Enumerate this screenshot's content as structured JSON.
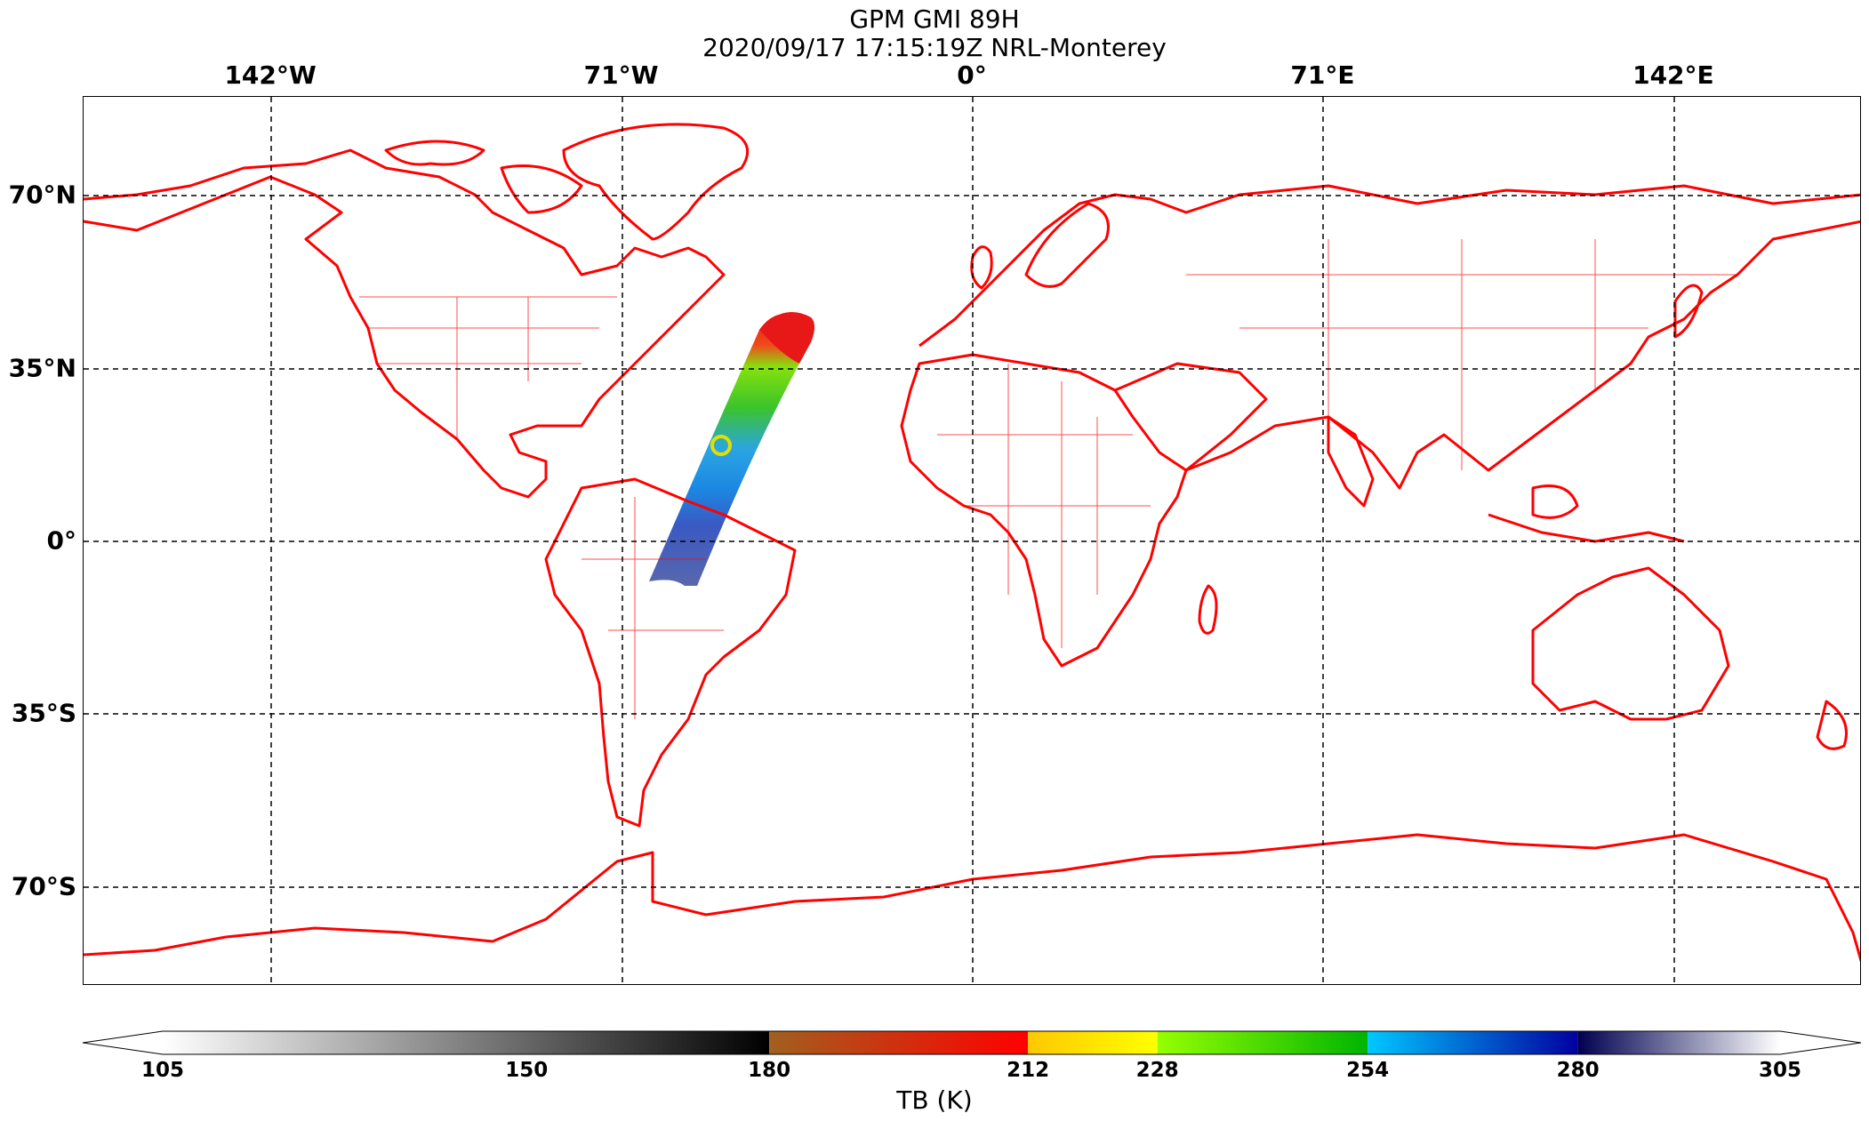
{
  "title": "GPM GMI 89H",
  "subtitle": "2020/09/17 17:15:19Z NRL-Monterey",
  "lon_labels": [
    "142°W",
    "71°W",
    "0°",
    "71°E",
    "142°E"
  ],
  "lat_labels": [
    "70°N",
    "35°N",
    "0°",
    "35°S",
    "70°S"
  ],
  "colorbar": {
    "label": "TB (K)",
    "ticks": [
      "105",
      "150",
      "180",
      "212",
      "228",
      "254",
      "280",
      "305"
    ],
    "range": [
      105,
      305
    ],
    "segments": [
      {
        "from": 105,
        "to": 180,
        "colors": [
          "#ffffff",
          "#000000"
        ]
      },
      {
        "from": 180,
        "to": 212,
        "colors": [
          "#a0601e",
          "#ff0000"
        ]
      },
      {
        "from": 212,
        "to": 228,
        "colors": [
          "#ffc800",
          "#ffff00"
        ]
      },
      {
        "from": 228,
        "to": 254,
        "colors": [
          "#96ff00",
          "#00b400"
        ]
      },
      {
        "from": 254,
        "to": 280,
        "colors": [
          "#00c8ff",
          "#0000a0"
        ]
      },
      {
        "from": 280,
        "to": 305,
        "colors": [
          "#000050",
          "#ffffff"
        ]
      }
    ]
  },
  "map": {
    "coastline_color": "#ff0000",
    "projection": "plate-carree",
    "lon_range": [
      -180,
      180
    ],
    "lat_range": [
      -90,
      90
    ],
    "gridline_lons": [
      -142,
      -71,
      0,
      71,
      142
    ],
    "gridline_lats": [
      70,
      35,
      0,
      -35,
      -70
    ]
  }
}
